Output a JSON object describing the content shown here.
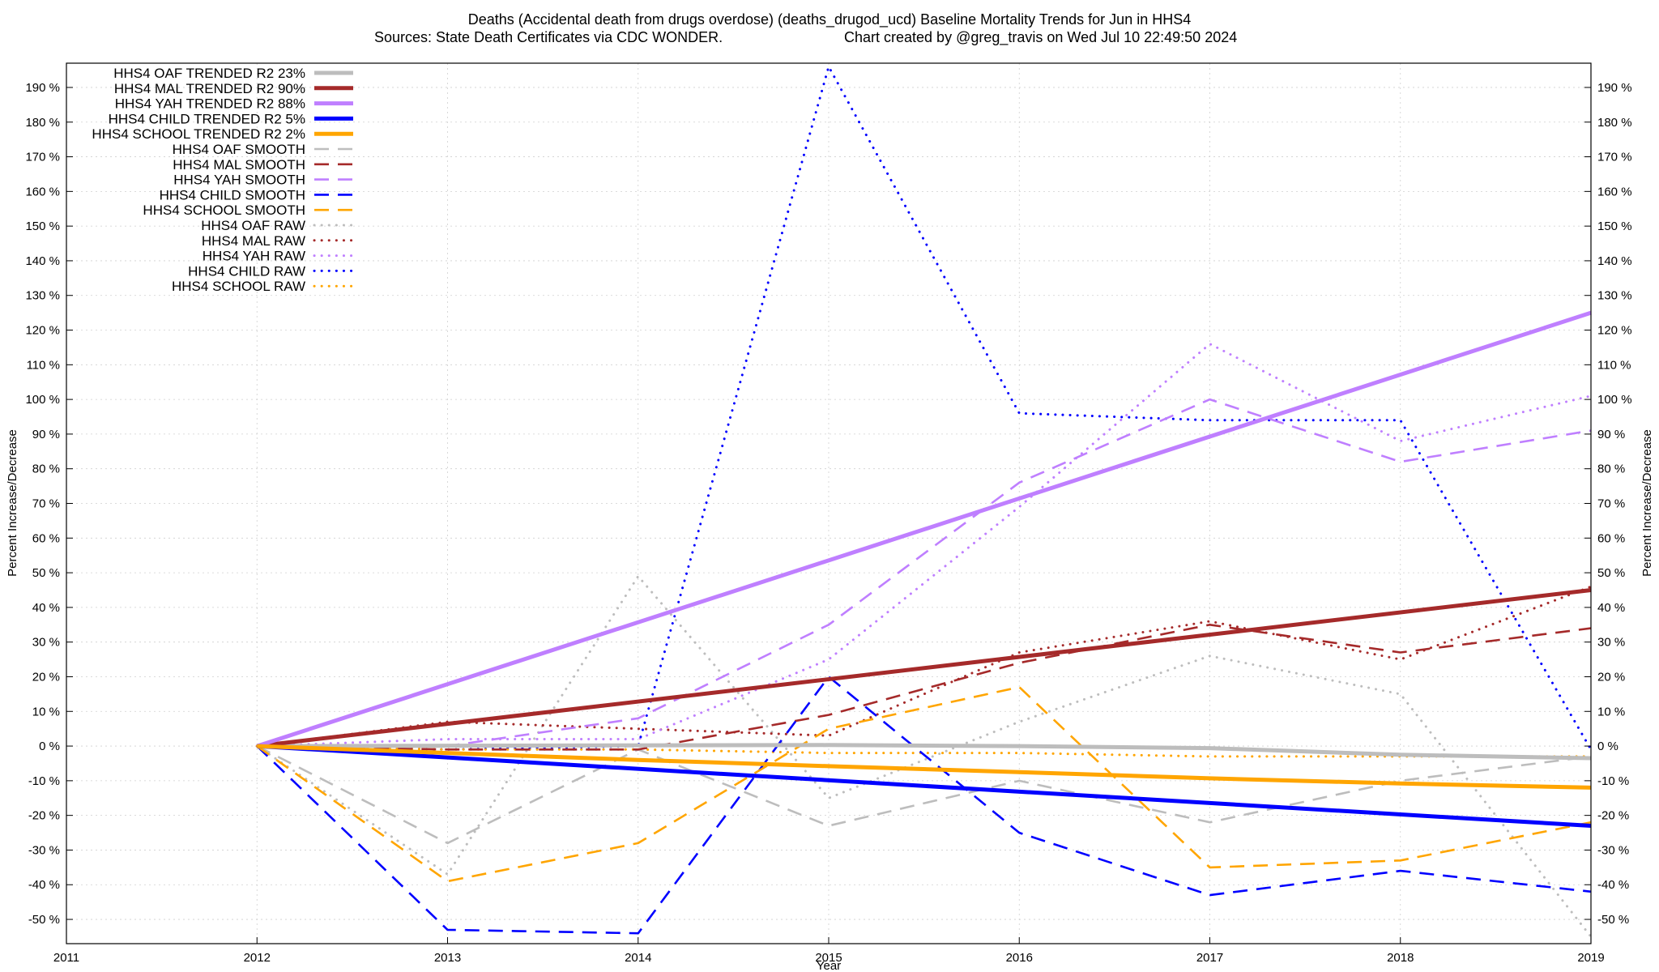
{
  "chart_data": {
    "type": "line",
    "title": "Deaths (Accidental death from drugs overdose) (deaths_drugod_ucd)  Baseline Mortality Trends for Jun in HHS4",
    "subtitle_left": "Sources: State Death Certificates via CDC WONDER.",
    "subtitle_right": "Chart created by @greg_travis on Wed Jul 10 22:49:50 2024",
    "xlabel": "Year",
    "ylabel_left": "Percent Increase/Decrease",
    "ylabel_right": "Percent Increase/Decrease",
    "xlim": [
      2011,
      2019
    ],
    "ylim": [
      -57,
      197
    ],
    "x_ticks": [
      {
        "value": 2011,
        "label": "2011"
      },
      {
        "value": 2012,
        "label": "2012"
      },
      {
        "value": 2013,
        "label": "2013"
      },
      {
        "value": 2014,
        "label": "2014"
      },
      {
        "value": 2015,
        "label": "2015"
      },
      {
        "value": 2016,
        "label": "2016"
      },
      {
        "value": 2017,
        "label": "2017"
      },
      {
        "value": 2018,
        "label": "2018"
      },
      {
        "value": 2019,
        "label": "2019"
      }
    ],
    "y_ticks": [
      {
        "value": 190,
        "label": "190 %"
      },
      {
        "value": 180,
        "label": "180 %"
      },
      {
        "value": 170,
        "label": "170 %"
      },
      {
        "value": 160,
        "label": "160 %"
      },
      {
        "value": 150,
        "label": "150 %"
      },
      {
        "value": 140,
        "label": "140 %"
      },
      {
        "value": 130,
        "label": "130 %"
      },
      {
        "value": 120,
        "label": "120 %"
      },
      {
        "value": 110,
        "label": "110 %"
      },
      {
        "value": 100,
        "label": "100 %"
      },
      {
        "value": 90,
        "label": "90 %"
      },
      {
        "value": 80,
        "label": "80 %"
      },
      {
        "value": 70,
        "label": "70 %"
      },
      {
        "value": 60,
        "label": "60 %"
      },
      {
        "value": 50,
        "label": "50 %"
      },
      {
        "value": 40,
        "label": "40 %"
      },
      {
        "value": 30,
        "label": "30 %"
      },
      {
        "value": 20,
        "label": "20 %"
      },
      {
        "value": 10,
        "label": "10 %"
      },
      {
        "value": 0,
        "label": "0 %"
      },
      {
        "value": -10,
        "label": "-10 %"
      },
      {
        "value": -20,
        "label": "-20 %"
      },
      {
        "value": -30,
        "label": "-30 %"
      },
      {
        "value": -40,
        "label": "-40 %"
      },
      {
        "value": -50,
        "label": "-50 %"
      }
    ],
    "grid": true,
    "legend_position": "top-left",
    "series": [
      {
        "name": "HHS4 OAF TRENDED R2  23%",
        "color": "#bdbdbd",
        "style": "solid",
        "x": [
          2012,
          2015,
          2016,
          2017,
          2018,
          2019
        ],
        "y": [
          0,
          0.3,
          0,
          -0.6,
          -2.5,
          -3.5
        ]
      },
      {
        "name": "HHS4 MAL TRENDED R2  90%",
        "color": "#a52a2a",
        "style": "solid",
        "x": [
          2012,
          2019
        ],
        "y": [
          0,
          45
        ]
      },
      {
        "name": "HHS4 YAH TRENDED R2  88%",
        "color": "#bf7fff",
        "style": "solid",
        "x": [
          2012,
          2019
        ],
        "y": [
          0,
          125
        ]
      },
      {
        "name": "HHS4 CHILD TRENDED R2  5%",
        "color": "#0000ff",
        "style": "solid",
        "x": [
          2012,
          2019
        ],
        "y": [
          0,
          -23
        ]
      },
      {
        "name": "HHS4 SCHOOL TRENDED R2  2%",
        "color": "#ffa500",
        "style": "solid",
        "x": [
          2012,
          2013,
          2014,
          2015,
          2016,
          2017,
          2018,
          2019
        ],
        "y": [
          0,
          -2,
          -4,
          -5.8,
          -7.5,
          -9.3,
          -10.8,
          -12
        ]
      },
      {
        "name": "HHS4 OAF SMOOTH",
        "color": "#bdbdbd",
        "style": "dashed",
        "x": [
          2012,
          2013,
          2014,
          2015,
          2016,
          2017,
          2018,
          2019
        ],
        "y": [
          0,
          -28,
          -1,
          -23,
          -10,
          -22,
          -10,
          -3
        ]
      },
      {
        "name": "HHS4 MAL SMOOTH",
        "color": "#a52a2a",
        "style": "dashed",
        "x": [
          2012,
          2013,
          2014,
          2015,
          2016,
          2017,
          2018,
          2019
        ],
        "y": [
          0,
          -1,
          -1,
          9,
          24,
          35,
          27,
          34
        ]
      },
      {
        "name": "HHS4 YAH SMOOTH",
        "color": "#bf7fff",
        "style": "dashed",
        "x": [
          2012,
          2013,
          2014,
          2015,
          2016,
          2017,
          2018,
          2019
        ],
        "y": [
          0,
          0,
          8,
          35,
          76,
          100,
          82,
          91
        ]
      },
      {
        "name": "HHS4 CHILD SMOOTH",
        "color": "#0000ff",
        "style": "dashed",
        "x": [
          2012,
          2013,
          2014,
          2015,
          2016,
          2017,
          2018,
          2019
        ],
        "y": [
          0,
          -53,
          -54,
          20,
          -25,
          -43,
          -36,
          -42
        ]
      },
      {
        "name": "HHS4 SCHOOL SMOOTH",
        "color": "#ffa500",
        "style": "dashed",
        "x": [
          2012,
          2013,
          2014,
          2015,
          2016,
          2017,
          2018,
          2019
        ],
        "y": [
          0,
          -39,
          -28,
          5,
          17,
          -35,
          -33,
          -22
        ]
      },
      {
        "name": "HHS4 OAF RAW",
        "color": "#bdbdbd",
        "style": "dotted",
        "x": [
          2012,
          2013,
          2014,
          2015,
          2016,
          2017,
          2018,
          2019
        ],
        "y": [
          0,
          -37,
          49,
          -15,
          7,
          26,
          15,
          -55
        ]
      },
      {
        "name": "HHS4 MAL RAW",
        "color": "#a52a2a",
        "style": "dotted",
        "x": [
          2012,
          2013,
          2014,
          2015,
          2016,
          2017,
          2018,
          2019
        ],
        "y": [
          0,
          7,
          5,
          3,
          27,
          36,
          25,
          46
        ]
      },
      {
        "name": "HHS4 YAH RAW",
        "color": "#bf7fff",
        "style": "dotted",
        "x": [
          2012,
          2013,
          2014,
          2015,
          2016,
          2017,
          2018,
          2019
        ],
        "y": [
          0,
          2,
          2,
          25,
          69,
          116,
          88,
          101
        ]
      },
      {
        "name": "HHS4 CHILD RAW",
        "color": "#0000ff",
        "style": "dotted",
        "x": [
          2012,
          2013,
          2014,
          2015,
          2016,
          2017,
          2018,
          2019
        ],
        "y": [
          0,
          -1,
          0,
          196,
          96,
          94,
          94,
          -1
        ]
      },
      {
        "name": "HHS4 SCHOOL RAW",
        "color": "#ffa500",
        "style": "dotted",
        "x": [
          2012,
          2013,
          2014,
          2015,
          2016,
          2017,
          2018,
          2019
        ],
        "y": [
          0,
          -1,
          -1,
          -2,
          -2,
          -3,
          -3,
          -3
        ]
      }
    ]
  }
}
